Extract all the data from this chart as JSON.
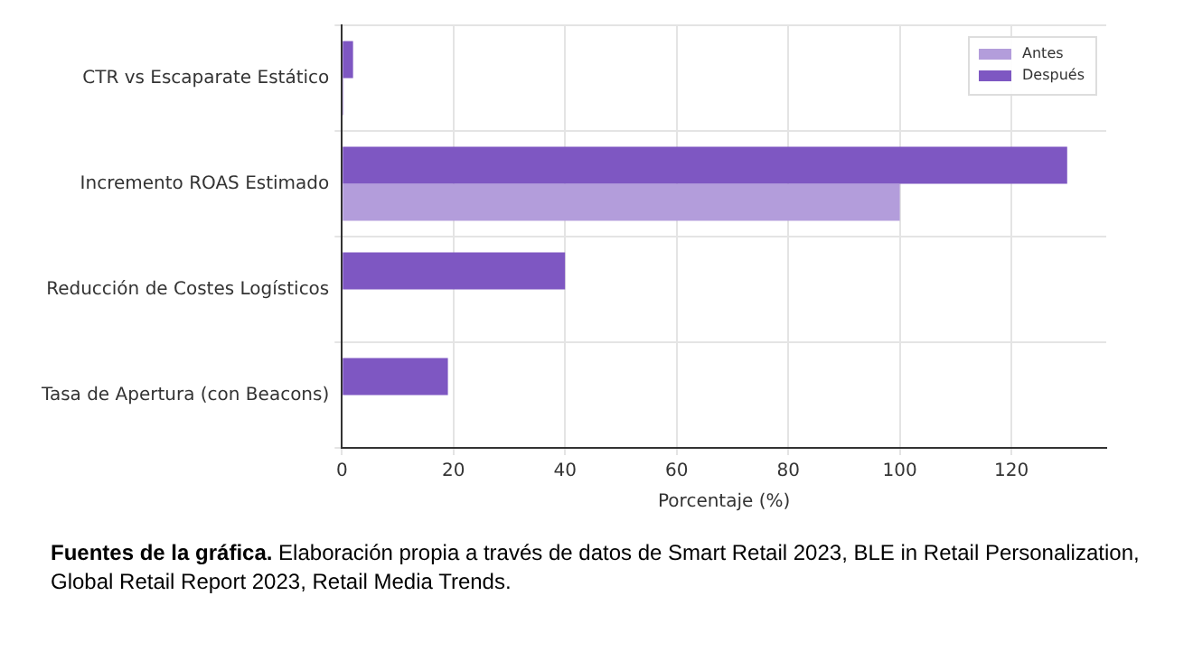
{
  "chart_data": {
    "type": "bar",
    "orientation": "horizontal",
    "categories": [
      "CTR vs Escaparate Estático",
      "Incremento ROAS Estimado",
      "Reducción de Costes Logísticos",
      "Tasa de Apertura (con Beacons)"
    ],
    "series": [
      {
        "name": "Antes",
        "color": "#b39ddb",
        "values": [
          0.3,
          100,
          0,
          0
        ]
      },
      {
        "name": "Después",
        "color": "#7e57c2",
        "values": [
          2,
          130,
          40,
          19
        ]
      }
    ],
    "xlabel": "Porcentaje (%)",
    "xlim": [
      0,
      137
    ],
    "xticks": [
      0,
      20,
      40,
      60,
      80,
      100,
      120
    ],
    "grid": true,
    "legend": "top right",
    "annotations": [
      "Fuentes de la gráfica.",
      "Elaboración propia a través de datos de Smart Retail 2023, BLE in Retail Personalization, Global Retail Report 2023, Retail Media Trends."
    ]
  }
}
